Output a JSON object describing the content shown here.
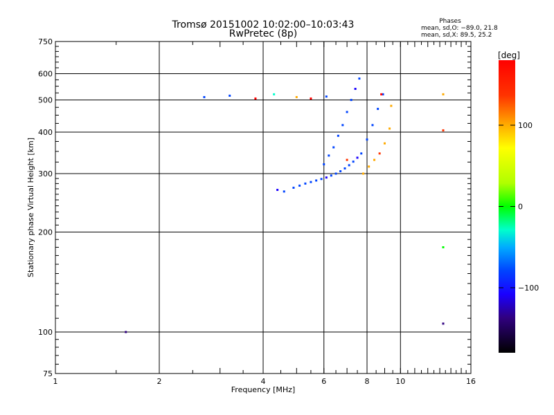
{
  "header": {
    "title": "Tromsø 20151002 10:02:00–10:03:43",
    "subtitle": "RwPretec (8p)",
    "stats_title": "Phases",
    "stats_o": "mean, sd,O: −89.0, 21.8",
    "stats_x": "mean, sd,X:  89.5, 25.2"
  },
  "chart_data": {
    "type": "scatter",
    "title": "Tromsø 20151002 10:02:00–10:03:43",
    "subtitle": "RwPretec (8p)",
    "xlabel": "Frequency [MHz]",
    "ylabel": "Stationary phase Virtual Height [km]",
    "x_scale": "log",
    "y_scale": "log",
    "xlim": [
      1,
      16
    ],
    "ylim": [
      75,
      750
    ],
    "x_ticks": [
      1,
      2,
      4,
      6,
      8,
      10,
      16
    ],
    "y_ticks": [
      75,
      100,
      200,
      300,
      400,
      500,
      600,
      750
    ],
    "x_gridlines": [
      2,
      4,
      6,
      8,
      10
    ],
    "y_gridlines": [
      100,
      200,
      300,
      400,
      500,
      600
    ],
    "grid": true,
    "colorbar": {
      "label": "[deg]",
      "range": [
        -180,
        180
      ],
      "ticks": [
        100,
        0,
        -100
      ],
      "colormap": "rainbow"
    },
    "series": [
      {
        "values": [
          {
            "x": 4.4,
            "y": 268,
            "p": -110
          },
          {
            "x": 4.6,
            "y": 265,
            "p": -100
          },
          {
            "x": 4.9,
            "y": 272,
            "p": -95
          },
          {
            "x": 5.1,
            "y": 276,
            "p": -105
          },
          {
            "x": 5.3,
            "y": 280,
            "p": -100
          },
          {
            "x": 5.5,
            "y": 283,
            "p": -90
          },
          {
            "x": 5.7,
            "y": 286,
            "p": -95
          },
          {
            "x": 5.9,
            "y": 289,
            "p": -100
          },
          {
            "x": 6.1,
            "y": 292,
            "p": -110
          },
          {
            "x": 6.3,
            "y": 296,
            "p": -95
          },
          {
            "x": 6.5,
            "y": 300,
            "p": -100
          },
          {
            "x": 6.7,
            "y": 305,
            "p": -90
          },
          {
            "x": 6.9,
            "y": 311,
            "p": -105
          },
          {
            "x": 7.1,
            "y": 318,
            "p": -95
          },
          {
            "x": 7.3,
            "y": 326,
            "p": -100
          },
          {
            "x": 7.5,
            "y": 335,
            "p": -110
          },
          {
            "x": 7.7,
            "y": 345,
            "p": -90
          },
          {
            "x": 6.0,
            "y": 320,
            "p": -100
          },
          {
            "x": 6.2,
            "y": 340,
            "p": -95
          },
          {
            "x": 6.4,
            "y": 360,
            "p": -105
          },
          {
            "x": 6.6,
            "y": 390,
            "p": -100
          },
          {
            "x": 6.8,
            "y": 420,
            "p": -90
          },
          {
            "x": 7.0,
            "y": 460,
            "p": -100
          },
          {
            "x": 7.2,
            "y": 500,
            "p": -95
          },
          {
            "x": 7.4,
            "y": 540,
            "p": -110
          },
          {
            "x": 7.6,
            "y": 580,
            "p": -100
          },
          {
            "x": 8.0,
            "y": 380,
            "p": -105
          },
          {
            "x": 8.3,
            "y": 420,
            "p": -95
          },
          {
            "x": 8.6,
            "y": 470,
            "p": -100
          },
          {
            "x": 8.9,
            "y": 520,
            "p": -90
          },
          {
            "x": 7.8,
            "y": 300,
            "p": 90
          },
          {
            "x": 8.1,
            "y": 315,
            "p": 100
          },
          {
            "x": 8.4,
            "y": 330,
            "p": 95
          },
          {
            "x": 8.7,
            "y": 345,
            "p": 110
          },
          {
            "x": 9.0,
            "y": 370,
            "p": 90
          },
          {
            "x": 9.3,
            "y": 410,
            "p": 95
          },
          {
            "x": 9.4,
            "y": 480,
            "p": 100
          },
          {
            "x": 7.0,
            "y": 330,
            "p": 120
          },
          {
            "x": 8.8,
            "y": 520,
            "p": 140
          },
          {
            "x": 3.2,
            "y": 515,
            "p": -80
          },
          {
            "x": 3.8,
            "y": 505,
            "p": 160
          },
          {
            "x": 4.3,
            "y": 520,
            "p": -30
          },
          {
            "x": 5.0,
            "y": 510,
            "p": 90
          },
          {
            "x": 5.5,
            "y": 505,
            "p": 150
          },
          {
            "x": 6.1,
            "y": 512,
            "p": -100
          },
          {
            "x": 2.7,
            "y": 510,
            "p": -90
          },
          {
            "x": 13.3,
            "y": 520,
            "p": 100
          },
          {
            "x": 13.3,
            "y": 405,
            "p": 130
          },
          {
            "x": 13.3,
            "y": 180,
            "p": -10
          },
          {
            "x": 13.3,
            "y": 106,
            "p": -160
          },
          {
            "x": 1.6,
            "y": 100,
            "p": -150
          }
        ]
      }
    ]
  }
}
